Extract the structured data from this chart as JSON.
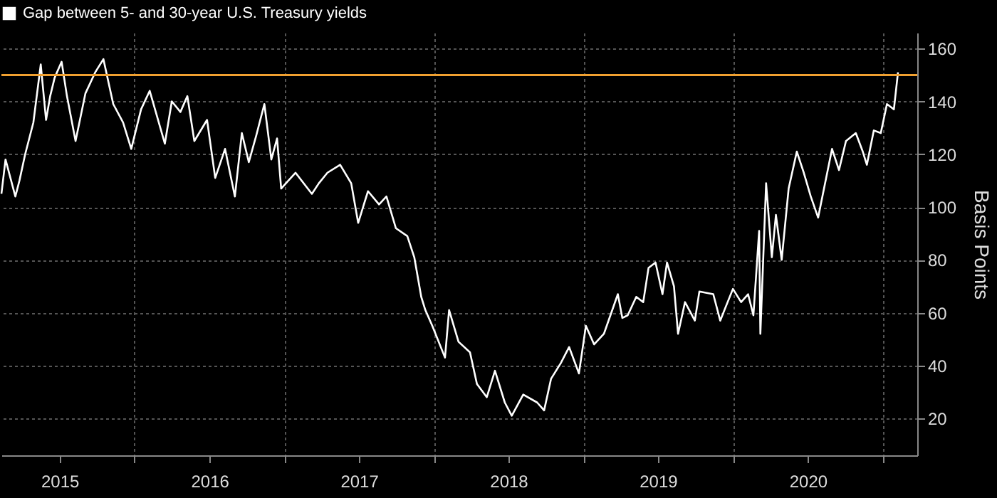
{
  "chart_data": {
    "type": "line",
    "x": [
      "2015-02-10",
      "2015-02-20",
      "2015-03-16",
      "2015-03-26",
      "2015-04-09",
      "2015-04-29",
      "2015-05-17",
      "2015-05-30",
      "2015-06-09",
      "2015-06-20",
      "2015-07-07",
      "2015-07-20",
      "2015-08-10",
      "2015-09-03",
      "2015-09-27",
      "2015-10-17",
      "2015-11-10",
      "2015-12-04",
      "2015-12-24",
      "2016-01-17",
      "2016-02-07",
      "2016-02-20",
      "2016-03-15",
      "2016-04-01",
      "2016-04-22",
      "2016-05-09",
      "2016-05-26",
      "2016-06-26",
      "2016-07-16",
      "2016-08-09",
      "2016-09-02",
      "2016-09-19",
      "2016-10-06",
      "2016-10-24",
      "2016-11-13",
      "2016-11-30",
      "2016-12-14",
      "2016-12-24",
      "2017-01-28",
      "2017-03-09",
      "2017-03-26",
      "2017-04-16",
      "2017-05-17",
      "2017-06-13",
      "2017-06-30",
      "2017-07-24",
      "2017-08-20",
      "2017-09-07",
      "2017-09-30",
      "2017-10-28",
      "2017-11-14",
      "2017-12-01",
      "2017-12-11",
      "2017-12-28",
      "2018-01-28",
      "2018-02-07",
      "2018-03-02",
      "2018-03-30",
      "2018-04-16",
      "2018-05-10",
      "2018-05-30",
      "2018-06-23",
      "2018-07-10",
      "2018-08-07",
      "2018-09-10",
      "2018-09-27",
      "2018-10-14",
      "2018-11-07",
      "2018-11-27",
      "2018-12-21",
      "2019-01-07",
      "2019-01-27",
      "2019-02-20",
      "2019-03-26",
      "2019-04-06",
      "2019-04-19",
      "2019-05-10",
      "2019-05-27",
      "2019-06-09",
      "2019-06-26",
      "2019-07-13",
      "2019-07-24",
      "2019-08-10",
      "2019-08-20",
      "2019-09-06",
      "2019-09-30",
      "2019-10-11",
      "2019-11-14",
      "2019-12-01",
      "2020-01-01",
      "2020-01-21",
      "2020-02-07",
      "2020-02-20",
      "2020-03-05",
      "2020-03-08",
      "2020-03-22",
      "2020-04-05",
      "2020-04-15",
      "2020-04-29",
      "2020-05-16",
      "2020-06-05",
      "2020-06-22",
      "2020-07-09",
      "2020-07-27",
      "2020-08-13",
      "2020-08-30",
      "2020-09-16",
      "2020-10-03",
      "2020-10-27",
      "2020-11-13",
      "2020-11-23",
      "2020-12-10",
      "2020-12-27",
      "2021-01-11",
      "2021-01-28",
      "2021-02-07"
    ],
    "series": [
      {
        "name": "Gap between 5- and 30-year U.S. Treasury yields",
        "color": "#ffffff",
        "values": [
          105,
          118,
          104,
          110,
          120,
          132,
          154,
          133,
          142,
          149,
          155,
          142,
          125,
          143,
          151,
          156,
          139,
          132,
          122,
          137,
          144,
          137,
          124,
          140,
          136,
          142,
          125,
          133,
          111,
          122,
          104,
          128,
          117,
          127,
          139,
          118,
          126,
          107,
          113,
          105,
          109,
          113,
          116,
          109,
          94,
          106,
          101,
          104,
          92,
          89,
          81,
          66,
          61,
          55,
          43,
          61,
          49,
          45,
          33,
          28,
          38,
          26,
          21,
          29,
          26,
          23,
          35,
          41,
          47,
          37,
          55,
          48,
          52,
          67,
          58,
          59,
          66,
          64,
          77,
          79,
          67,
          79,
          70,
          52,
          64,
          57,
          68,
          67,
          57,
          69,
          64,
          67,
          59,
          91,
          52,
          109,
          81,
          97,
          80,
          107,
          121,
          113,
          104,
          96,
          109,
          122,
          114,
          125,
          128,
          121,
          116,
          129,
          128,
          139,
          137,
          151
        ]
      }
    ],
    "xlim": [
      "2015-02-10",
      "2021-03-26"
    ],
    "xticks": [
      {
        "value": "2015-07-02",
        "label": "2015"
      },
      {
        "value": "2016-01-01",
        "label": null
      },
      {
        "value": "2016-07-02",
        "label": "2016"
      },
      {
        "value": "2017-01-01",
        "label": null
      },
      {
        "value": "2017-07-02",
        "label": "2017"
      },
      {
        "value": "2018-01-01",
        "label": null
      },
      {
        "value": "2018-07-02",
        "label": "2018"
      },
      {
        "value": "2019-01-01",
        "label": null
      },
      {
        "value": "2019-07-02",
        "label": "2019"
      },
      {
        "value": "2020-01-01",
        "label": null
      },
      {
        "value": "2020-07-02",
        "label": "2020"
      },
      {
        "value": "2021-01-01",
        "label": null
      }
    ],
    "ylim": [
      6,
      166
    ],
    "yticks": [
      20,
      40,
      60,
      80,
      100,
      120,
      140,
      160
    ],
    "ylabel": "Basis Points",
    "ref_lines": [
      {
        "axis": "y",
        "value": 150,
        "label": null,
        "color": "#f0a030"
      }
    ],
    "grid": true,
    "legend": "top left"
  }
}
